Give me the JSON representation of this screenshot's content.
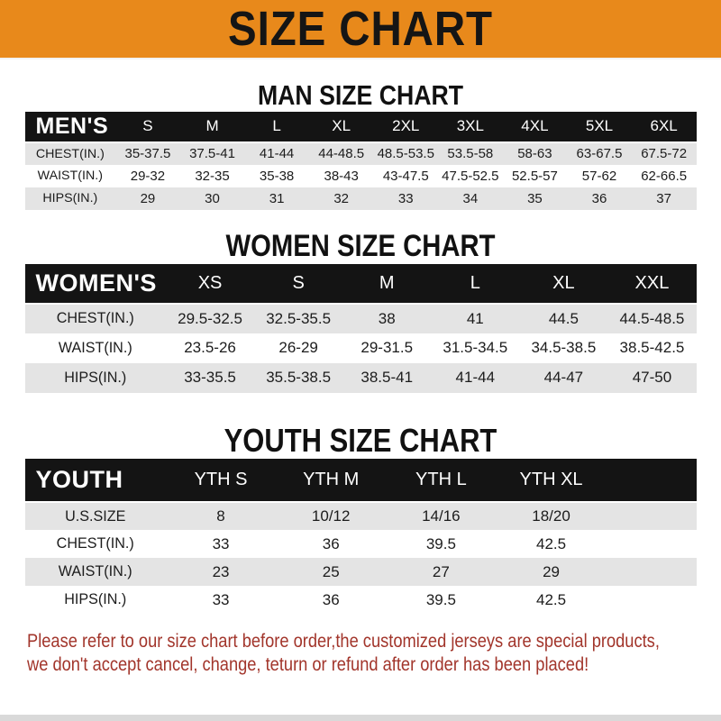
{
  "banner": {
    "title": "SIZE CHART",
    "bg_color": "#E8891B"
  },
  "sections": [
    {
      "heading": "MAN SIZE CHART",
      "table": {
        "header_label": "MEN'S",
        "columns": [
          "S",
          "M",
          "L",
          "XL",
          "2XL",
          "3XL",
          "4XL",
          "5XL",
          "6XL"
        ],
        "rows": [
          {
            "label": "CHEST(IN.)",
            "values": [
              "35-37.5",
              "37.5-41",
              "41-44",
              "44-48.5",
              "48.5-53.5",
              "53.5-58",
              "58-63",
              "63-67.5",
              "67.5-72"
            ]
          },
          {
            "label": "WAIST(IN.)",
            "values": [
              "29-32",
              "32-35",
              "35-38",
              "38-43",
              "43-47.5",
              "47.5-52.5",
              "52.5-57",
              "57-62",
              "62-66.5"
            ]
          },
          {
            "label": "HIPS(IN.)",
            "values": [
              "29",
              "30",
              "31",
              "32",
              "33",
              "34",
              "35",
              "36",
              "37"
            ]
          }
        ]
      }
    },
    {
      "heading": "WOMEN SIZE CHART",
      "table": {
        "header_label": "WOMEN'S",
        "columns": [
          "XS",
          "S",
          "M",
          "L",
          "XL",
          "XXL"
        ],
        "rows": [
          {
            "label": "CHEST(IN.)",
            "values": [
              "29.5-32.5",
              "32.5-35.5",
              "38",
              "41",
              "44.5",
              "44.5-48.5"
            ]
          },
          {
            "label": "WAIST(IN.)",
            "values": [
              "23.5-26",
              "26-29",
              "29-31.5",
              "31.5-34.5",
              "34.5-38.5",
              "38.5-42.5"
            ]
          },
          {
            "label": "HIPS(IN.)",
            "values": [
              "33-35.5",
              "35.5-38.5",
              "38.5-41",
              "41-44",
              "44-47",
              "47-50"
            ]
          }
        ]
      }
    },
    {
      "heading": "YOUTH SIZE CHART",
      "table": {
        "header_label": "YOUTH",
        "columns": [
          "YTH S",
          "YTH M",
          "YTH L",
          "YTH XL"
        ],
        "rows": [
          {
            "label": "U.S.SIZE",
            "values": [
              "8",
              "10/12",
              "14/16",
              "18/20"
            ]
          },
          {
            "label": "CHEST(IN.)",
            "values": [
              "33",
              "36",
              "39.5",
              "42.5"
            ]
          },
          {
            "label": "WAIST(IN.)",
            "values": [
              "23",
              "25",
              "27",
              "29"
            ]
          },
          {
            "label": "HIPS(IN.)",
            "values": [
              "33",
              "36",
              "39.5",
              "42.5"
            ]
          }
        ]
      }
    }
  ],
  "footer": {
    "line1": "Please refer to our size chart before order,the customized jerseys are special products,",
    "line2": "we don't accept cancel, change, teturn or refund after order has been placed!",
    "text_color": "#A2352B"
  }
}
